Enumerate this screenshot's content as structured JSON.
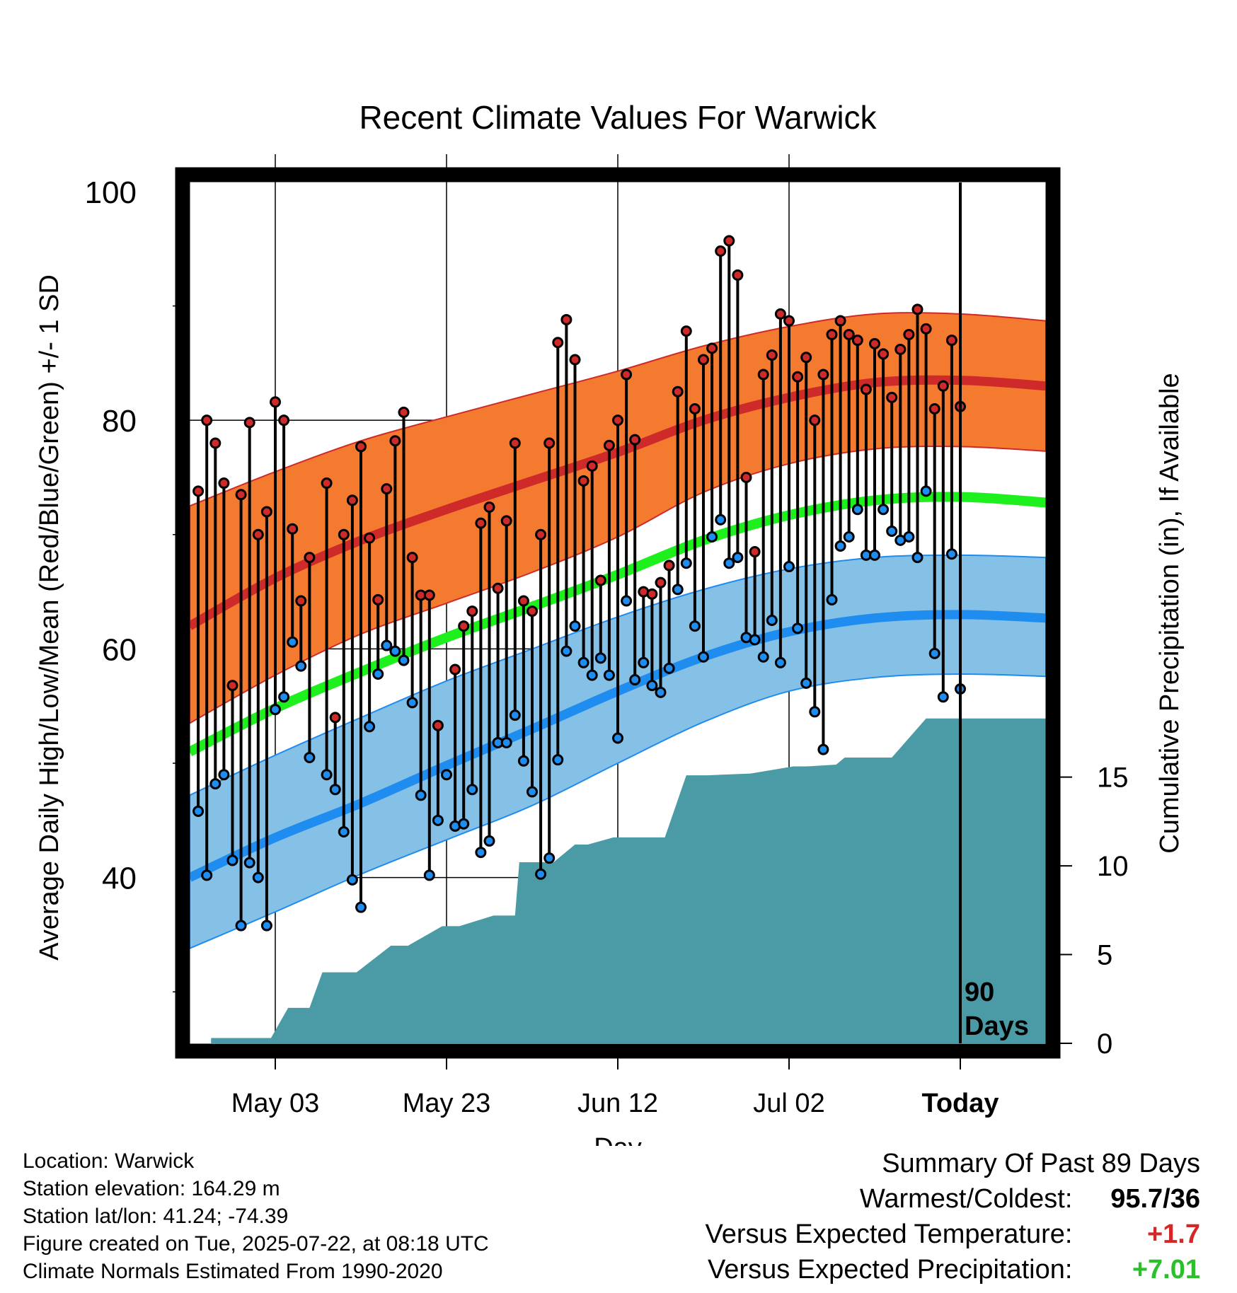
{
  "colors": {
    "high_band": "#f47a30",
    "high_line": "#cf2a2a",
    "low_band": "#85c1e6",
    "low_line": "#1f8cf0",
    "mean_line": "#1df01d",
    "precip_fill": "#4a9ba5",
    "high_dot": "#cf2a2a",
    "low_dot": "#1f8cf0",
    "temp_diff": "#d62728",
    "precip_diff": "#2bc02b"
  },
  "chart_data": {
    "type": "line",
    "title": "Recent Climate Values For Warwick",
    "xlabel": "Day",
    "ylabel": "Average Daily High/Low/Mean (Red/Blue/Green) +/- 1 SD",
    "y2label": "Cumulative Precipitation (in), If Available",
    "xlim": [
      -11,
      9
    ],
    "ylim": [
      25.5,
      100.8
    ],
    "y2lim": [
      0,
      48.5
    ],
    "y_ticks": [
      100,
      80,
      60,
      40
    ],
    "y2_ticks": [
      15,
      10,
      5,
      0
    ],
    "x_ticks": [
      {
        "x": -9,
        "label": "May 03"
      },
      {
        "x": -5,
        "label": "May 23"
      },
      {
        "x": -1,
        "label": "Jun 12"
      },
      {
        "x": 3,
        "label": "Jul 02"
      },
      {
        "x": 7,
        "label": "Today"
      }
    ],
    "today_x": 7,
    "today_label": [
      "90",
      "Days"
    ],
    "normals": {
      "x": [
        -11,
        -9,
        -7,
        -5,
        -3,
        -1,
        1,
        3,
        5,
        7,
        9
      ],
      "high_mean": [
        62,
        66.2,
        69.5,
        72.2,
        74.7,
        77.2,
        80,
        82,
        83.3,
        83.5,
        83
      ],
      "high_upper": [
        72.5,
        75.5,
        78.2,
        80.3,
        82.3,
        84.3,
        86.5,
        88.2,
        89.3,
        89.3,
        88.7
      ],
      "high_lower": [
        53.5,
        57.7,
        61.3,
        64,
        66.7,
        69.8,
        73.7,
        76.2,
        77.5,
        77.7,
        77.3
      ],
      "mean": [
        51,
        54.8,
        58,
        61,
        63.7,
        66.5,
        69.5,
        71.7,
        73,
        73.3,
        72.8
      ],
      "low_mean": [
        40,
        43.5,
        46.5,
        49.8,
        53,
        56.3,
        59.3,
        61.5,
        62.7,
        63,
        62.7
      ],
      "low_upper": [
        47.2,
        50.7,
        54,
        57.2,
        60,
        62.8,
        65.2,
        67,
        68,
        68.2,
        68
      ],
      "low_lower": [
        33.8,
        37,
        40.3,
        43.3,
        46.3,
        50,
        53.6,
        56.3,
        57.5,
        57.8,
        57.6
      ]
    },
    "daily": {
      "x_start": -10.8,
      "x_step": 0.2,
      "high": [
        73.8,
        80,
        78,
        74.5,
        56.8,
        73.5,
        79.8,
        70,
        72,
        81.6,
        80,
        70.5,
        64.2,
        68,
        null,
        74.5,
        54,
        70,
        73,
        77.7,
        69.7,
        64.3,
        74,
        78.2,
        80.7,
        68,
        64.7,
        64.7,
        53.3,
        null,
        58.2,
        62,
        63.3,
        71,
        72.4,
        65.3,
        71.2,
        78,
        64.2,
        63.3,
        70,
        78,
        86.8,
        88.8,
        85.3,
        74.7,
        76,
        66,
        77.8,
        80,
        84,
        78.3,
        65,
        64.8,
        65.8,
        67.3,
        82.5,
        87.8,
        81,
        85.3,
        86.3,
        94.8,
        95.7,
        92.7,
        75,
        68.5,
        84,
        85.7,
        89.3,
        88.7,
        83.8,
        85.5,
        80,
        84,
        87.5,
        88.7,
        87.5,
        87,
        82.7,
        86.7,
        85.8,
        82,
        86.2,
        87.5,
        89.7,
        88,
        81,
        83,
        87,
        81.2
      ],
      "low": [
        45.8,
        40.2,
        48.2,
        49,
        41.5,
        35.8,
        41.3,
        40,
        35.8,
        54.7,
        55.8,
        60.6,
        58.5,
        50.5,
        null,
        49,
        47.7,
        44,
        39.8,
        37.4,
        53.2,
        57.8,
        60.3,
        59.8,
        59,
        55.3,
        47.2,
        40.2,
        45,
        49,
        44.5,
        44.7,
        47.7,
        42.2,
        43.2,
        51.8,
        51.8,
        54.2,
        50.2,
        47.5,
        40.3,
        41.7,
        50.3,
        59.8,
        62,
        58.8,
        57.7,
        59.2,
        57.7,
        52.2,
        64.2,
        57.3,
        58.8,
        56.8,
        56.2,
        58.3,
        65.2,
        67.5,
        62,
        59.3,
        69.8,
        71.3,
        67.5,
        68,
        61,
        60.8,
        59.3,
        62.5,
        58.8,
        67.2,
        61.8,
        57,
        54.5,
        51.2,
        64.3,
        69,
        69.8,
        72.2,
        68.2,
        68.2,
        72.2,
        70.3,
        69.5,
        69.8,
        68,
        73.8,
        59.6,
        55.8,
        68.3,
        56.5
      ]
    },
    "precip": {
      "x": [
        -10.5,
        -9.1,
        -8.7,
        -8.2,
        -7.9,
        -7.1,
        -6.3,
        -5.9,
        -5.1,
        -4.7,
        -3.9,
        -3.4,
        -3.3,
        -2.5,
        -2,
        -1.7,
        -1.1,
        0.1,
        0.6,
        1.1,
        2.1,
        3.1,
        3.4,
        4.1,
        4.3,
        5.4,
        6.2,
        7,
        9
      ],
      "value": [
        0.3,
        0.3,
        2,
        2,
        4,
        4,
        5.5,
        5.5,
        6.6,
        6.6,
        7.2,
        7.2,
        10.2,
        10.2,
        11.2,
        11.2,
        11.6,
        11.6,
        15.1,
        15.1,
        15.2,
        15.6,
        15.6,
        15.7,
        16.1,
        16.1,
        18.3,
        18.3,
        18.3
      ]
    }
  },
  "footer": {
    "location": "Location: Warwick",
    "elevation": "Station elevation: 164.29 m",
    "latlon": "Station lat/lon: 41.24; -74.39",
    "created": "Figure created on Tue, 2025-07-22, at 08:18 UTC",
    "normals": "Climate Normals Estimated From 1990-2020"
  },
  "summary": {
    "heading": "Summary Of Past 89 Days",
    "warm_cold_label": "Warmest/Coldest:",
    "warm_cold_value": "95.7/36",
    "temp_label": "Versus Expected Temperature:",
    "temp_value": "+1.7",
    "precip_label": "Versus Expected Precipitation:",
    "precip_value": "+7.01"
  }
}
